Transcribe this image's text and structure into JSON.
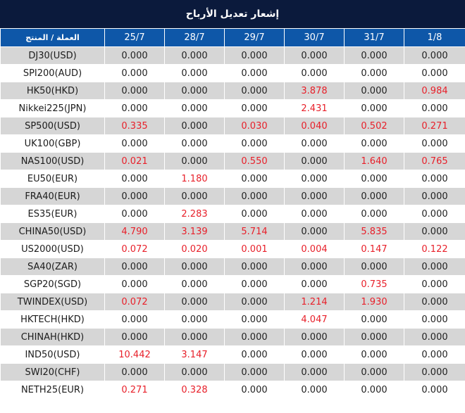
{
  "title": "إشعار تعديل الأرباح",
  "header": {
    "instrument": "العملة / المنتج",
    "dates": [
      "25/7",
      "28/7",
      "29/7",
      "30/7",
      "31/7",
      "1/8"
    ]
  },
  "colors": {
    "title_bg": "#0b1a3c",
    "header_bg": "#0e57a8",
    "nonzero_value": "#e8202a",
    "odd_row": "#d6d6d6"
  },
  "rows": [
    {
      "instrument": "DJ30(USD)",
      "values": [
        "0.000",
        "0.000",
        "0.000",
        "0.000",
        "0.000",
        "0.000"
      ]
    },
    {
      "instrument": "SPI200(AUD)",
      "values": [
        "0.000",
        "0.000",
        "0.000",
        "0.000",
        "0.000",
        "0.000"
      ]
    },
    {
      "instrument": "HK50(HKD)",
      "values": [
        "0.000",
        "0.000",
        "0.000",
        "3.878",
        "0.000",
        "0.984"
      ]
    },
    {
      "instrument": "Nikkei225(JPN)",
      "values": [
        "0.000",
        "0.000",
        "0.000",
        "2.431",
        "0.000",
        "0.000"
      ]
    },
    {
      "instrument": "SP500(USD)",
      "values": [
        "0.335",
        "0.000",
        "0.030",
        "0.040",
        "0.502",
        "0.271"
      ]
    },
    {
      "instrument": "UK100(GBP)",
      "values": [
        "0.000",
        "0.000",
        "0.000",
        "0.000",
        "0.000",
        "0.000"
      ]
    },
    {
      "instrument": "NAS100(USD)",
      "values": [
        "0.021",
        "0.000",
        "0.550",
        "0.000",
        "1.640",
        "0.765"
      ]
    },
    {
      "instrument": "EU50(EUR)",
      "values": [
        "0.000",
        "1.180",
        "0.000",
        "0.000",
        "0.000",
        "0.000"
      ]
    },
    {
      "instrument": "FRA40(EUR)",
      "values": [
        "0.000",
        "0.000",
        "0.000",
        "0.000",
        "0.000",
        "0.000"
      ]
    },
    {
      "instrument": "ES35(EUR)",
      "values": [
        "0.000",
        "2.283",
        "0.000",
        "0.000",
        "0.000",
        "0.000"
      ]
    },
    {
      "instrument": "CHINA50(USD)",
      "values": [
        "4.790",
        "3.139",
        "5.714",
        "0.000",
        "5.835",
        "0.000"
      ]
    },
    {
      "instrument": "US2000(USD)",
      "values": [
        "0.072",
        "0.020",
        "0.001",
        "0.004",
        "0.147",
        "0.122"
      ]
    },
    {
      "instrument": "SA40(ZAR)",
      "values": [
        "0.000",
        "0.000",
        "0.000",
        "0.000",
        "0.000",
        "0.000"
      ]
    },
    {
      "instrument": "SGP20(SGD)",
      "values": [
        "0.000",
        "0.000",
        "0.000",
        "0.000",
        "0.735",
        "0.000"
      ]
    },
    {
      "instrument": "TWINDEX(USD)",
      "values": [
        "0.072",
        "0.000",
        "0.000",
        "1.214",
        "1.930",
        "0.000"
      ]
    },
    {
      "instrument": "HKTECH(HKD)",
      "values": [
        "0.000",
        "0.000",
        "0.000",
        "4.047",
        "0.000",
        "0.000"
      ]
    },
    {
      "instrument": "CHINAH(HKD)",
      "values": [
        "0.000",
        "0.000",
        "0.000",
        "0.000",
        "0.000",
        "0.000"
      ]
    },
    {
      "instrument": "IND50(USD)",
      "values": [
        "10.442",
        "3.147",
        "0.000",
        "0.000",
        "0.000",
        "0.000"
      ]
    },
    {
      "instrument": "SWI20(CHF)",
      "values": [
        "0.000",
        "0.000",
        "0.000",
        "0.000",
        "0.000",
        "0.000"
      ]
    },
    {
      "instrument": "NETH25(EUR)",
      "values": [
        "0.271",
        "0.328",
        "0.000",
        "0.000",
        "0.000",
        "0.000"
      ]
    }
  ]
}
